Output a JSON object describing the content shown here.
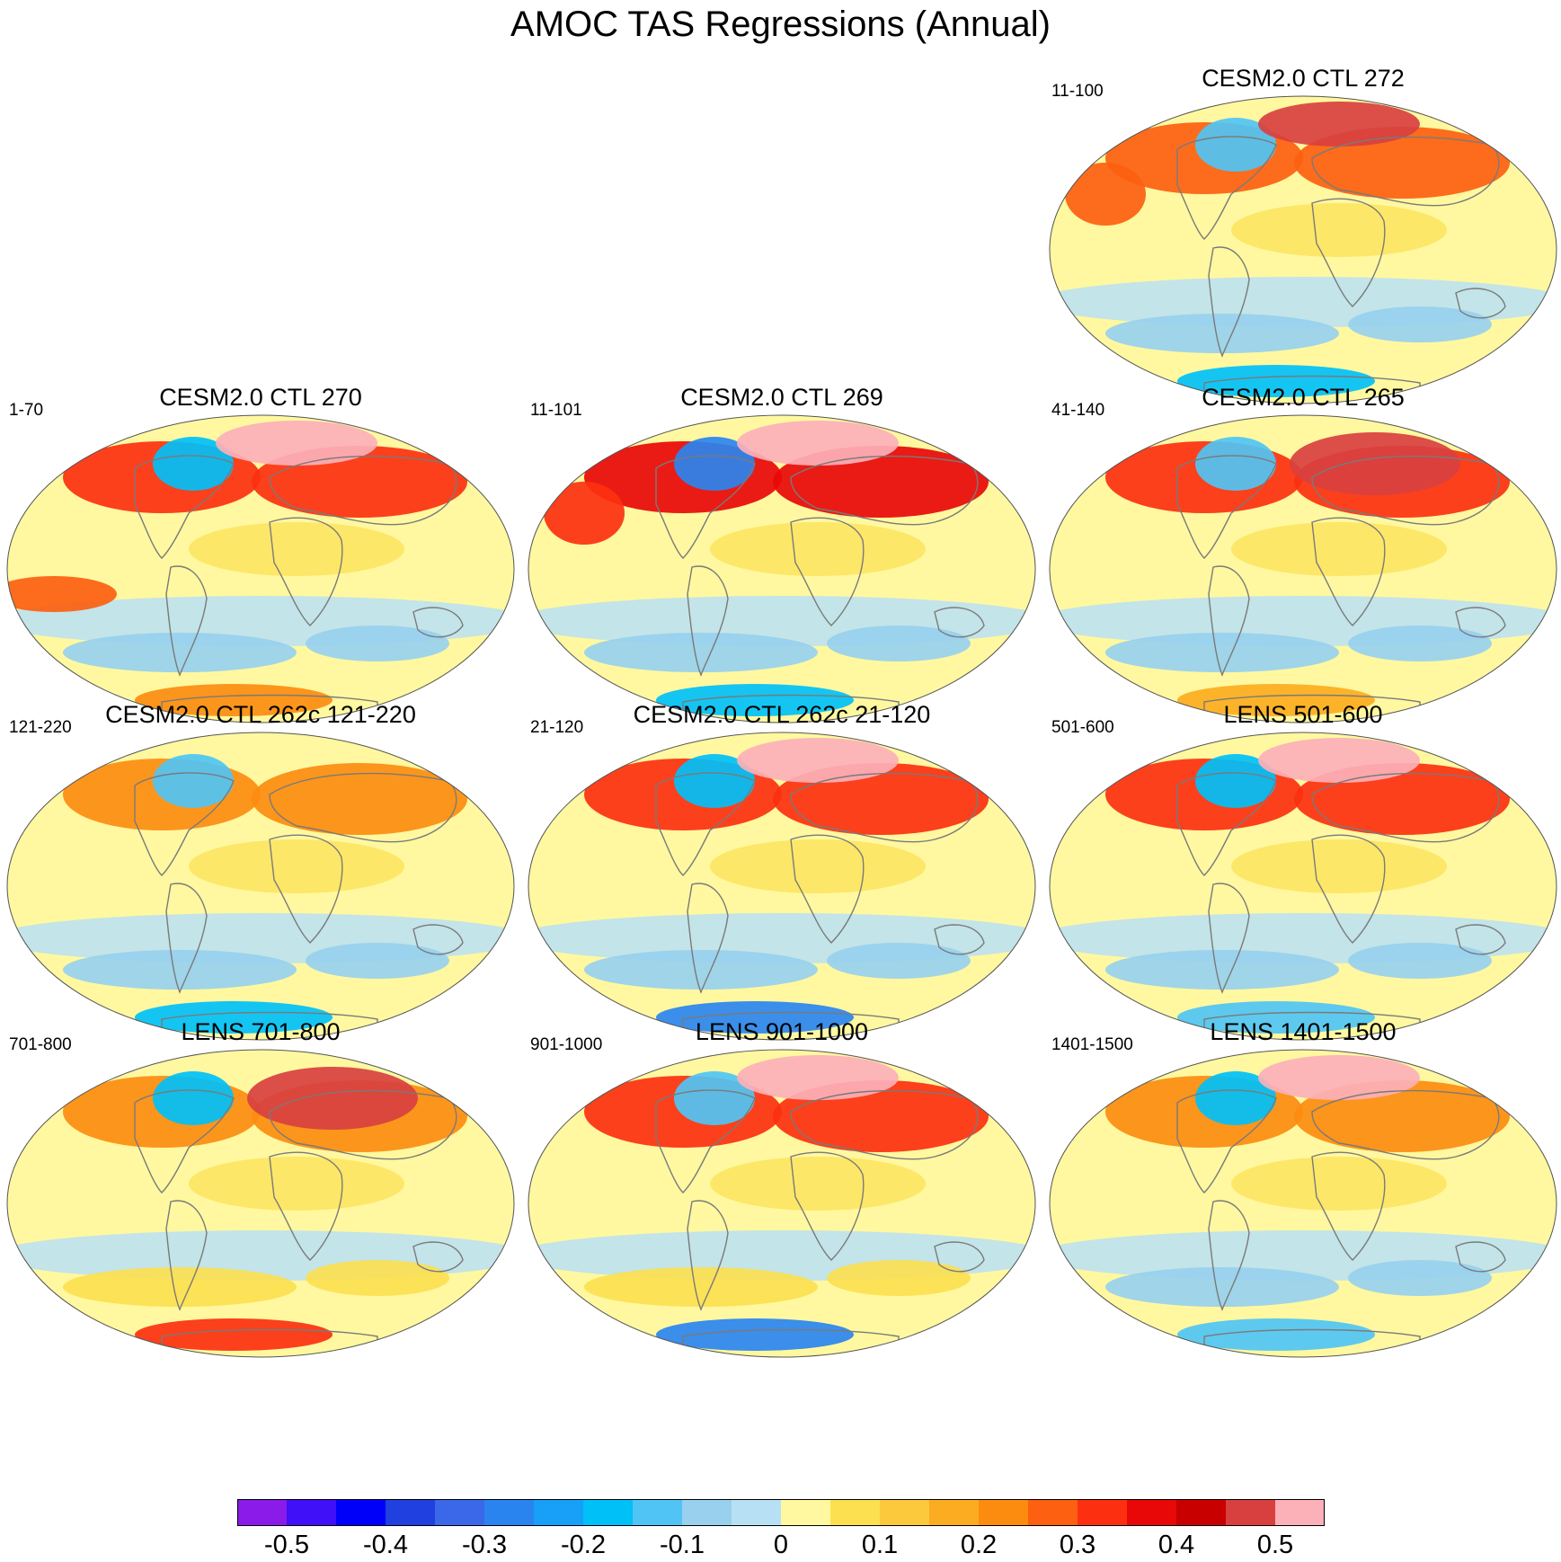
{
  "figure": {
    "title": "AMOC TAS Regressions (Annual)"
  },
  "panels": [
    {
      "id": "ctl272",
      "title": "CESM2.0 CTL 272",
      "period": "11-100"
    },
    {
      "id": "ctl270",
      "title": "CESM2.0 CTL 270",
      "period": "1-70"
    },
    {
      "id": "ctl269",
      "title": "CESM2.0 CTL 269",
      "period": "11-101"
    },
    {
      "id": "ctl265",
      "title": "CESM2.0 CTL 265",
      "period": "41-140"
    },
    {
      "id": "ctl262c_121",
      "title": "CESM2.0 CTL 262c 121-220",
      "period": "121-220"
    },
    {
      "id": "ctl262c_21",
      "title": "CESM2.0 CTL 262c 21-120",
      "period": "21-120"
    },
    {
      "id": "lens501",
      "title": "LENS 501-600",
      "period": "501-600"
    },
    {
      "id": "lens701",
      "title": "LENS 701-800",
      "period": "701-800"
    },
    {
      "id": "lens901",
      "title": "LENS 901-1000",
      "period": "901-1000"
    },
    {
      "id": "lens1401",
      "title": "LENS 1401-1500",
      "period": "1401-1500"
    }
  ],
  "colorbar": {
    "colors": [
      "#8a1be8",
      "#4010f8",
      "#0000fa",
      "#2040e0",
      "#3a68e8",
      "#2a84f0",
      "#18a0f8",
      "#00c0f8",
      "#50c4f4",
      "#98d0ee",
      "#b8e0f4",
      "#fff8a0",
      "#fce050",
      "#fcc83c",
      "#fcac20",
      "#fc8c10",
      "#fc6010",
      "#fc3010",
      "#e80808",
      "#c80000",
      "#d84040",
      "#fcb0b8"
    ],
    "labels": [
      "-0.5",
      "-0.4",
      "-0.3",
      "-0.2",
      "-0.1",
      "0",
      "0.1",
      "0.2",
      "0.3",
      "0.4",
      "0.5"
    ]
  },
  "chart_data": [
    {
      "type": "heatmap",
      "title": "CESM2.0 CTL 272",
      "period": "11-100",
      "xlabel": "",
      "ylabel": "",
      "projection": "global map",
      "features": [
        {
          "region": "Northern Hemisphere mid-high latitudes",
          "value": 0.25
        },
        {
          "region": "Greenland / Labrador Sea",
          "value": -0.15
        },
        {
          "region": "Arctic",
          "value": 0.45
        },
        {
          "region": "Southern Ocean",
          "value": -0.1
        },
        {
          "region": "Antarctica",
          "value": -0.2
        },
        {
          "region": "North Pacific",
          "value": 0.25
        }
      ]
    },
    {
      "type": "heatmap",
      "title": "CESM2.0 CTL 270",
      "period": "1-70",
      "xlabel": "",
      "ylabel": "",
      "projection": "global map",
      "features": [
        {
          "region": "Northern Hemisphere mid-high latitudes",
          "value": 0.3
        },
        {
          "region": "Greenland / Labrador Sea",
          "value": -0.2
        },
        {
          "region": "Arctic",
          "value": 0.55
        },
        {
          "region": "Southern Ocean",
          "value": -0.1
        },
        {
          "region": "Antarctica",
          "value": 0.2
        },
        {
          "region": "Tropical Pacific",
          "value": 0.25
        }
      ]
    },
    {
      "type": "heatmap",
      "title": "CESM2.0 CTL 269",
      "period": "11-101",
      "xlabel": "",
      "ylabel": "",
      "projection": "global map",
      "features": [
        {
          "region": "Northern Hemisphere mid-high latitudes",
          "value": 0.35
        },
        {
          "region": "Greenland / Labrador Sea",
          "value": -0.3
        },
        {
          "region": "Arctic",
          "value": 0.55
        },
        {
          "region": "Southern Ocean",
          "value": -0.1
        },
        {
          "region": "Antarctica",
          "value": -0.2
        },
        {
          "region": "North Pacific",
          "value": 0.3
        }
      ]
    },
    {
      "type": "heatmap",
      "title": "CESM2.0 CTL 265",
      "period": "41-140",
      "xlabel": "",
      "ylabel": "",
      "projection": "global map",
      "features": [
        {
          "region": "Northern Hemisphere mid-high latitudes",
          "value": 0.3
        },
        {
          "region": "Greenland / Labrador Sea",
          "value": -0.15
        },
        {
          "region": "Eurasia",
          "value": 0.45
        },
        {
          "region": "Southern Ocean",
          "value": -0.1
        },
        {
          "region": "Antarctica",
          "value": 0.15
        }
      ]
    },
    {
      "type": "heatmap",
      "title": "CESM2.0 CTL 262c 121-220",
      "period": "121-220",
      "xlabel": "",
      "ylabel": "",
      "projection": "global map",
      "features": [
        {
          "region": "Northern Hemisphere mid-high latitudes",
          "value": 0.2
        },
        {
          "region": "Greenland / Labrador Sea",
          "value": -0.15
        },
        {
          "region": "Southern Ocean",
          "value": -0.1
        },
        {
          "region": "Antarctica",
          "value": -0.2
        }
      ]
    },
    {
      "type": "heatmap",
      "title": "CESM2.0 CTL 262c 21-120",
      "period": "21-120",
      "xlabel": "",
      "ylabel": "",
      "projection": "global map",
      "features": [
        {
          "region": "Northern Hemisphere mid-high latitudes",
          "value": 0.3
        },
        {
          "region": "Greenland / Labrador Sea",
          "value": -0.2
        },
        {
          "region": "Arctic",
          "value": 0.55
        },
        {
          "region": "Southern Ocean",
          "value": -0.1
        },
        {
          "region": "Antarctica",
          "value": -0.3
        }
      ]
    },
    {
      "type": "heatmap",
      "title": "LENS 501-600",
      "period": "501-600",
      "xlabel": "",
      "ylabel": "",
      "projection": "global map",
      "features": [
        {
          "region": "Northern Hemisphere mid-high latitudes",
          "value": 0.3
        },
        {
          "region": "Greenland / Labrador Sea",
          "value": -0.2
        },
        {
          "region": "Arctic",
          "value": 0.55
        },
        {
          "region": "Southern Ocean",
          "value": -0.1
        },
        {
          "region": "Antarctica",
          "value": -0.15
        }
      ]
    },
    {
      "type": "heatmap",
      "title": "LENS 701-800",
      "period": "701-800",
      "xlabel": "",
      "ylabel": "",
      "projection": "global map",
      "features": [
        {
          "region": "Northern Hemisphere mid-high latitudes",
          "value": 0.2
        },
        {
          "region": "Greenland / Labrador Sea",
          "value": -0.2
        },
        {
          "region": "Eurasia",
          "value": 0.45
        },
        {
          "region": "Southern Ocean",
          "value": 0.05
        },
        {
          "region": "Antarctica",
          "value": 0.3
        }
      ]
    },
    {
      "type": "heatmap",
      "title": "LENS 901-1000",
      "period": "901-1000",
      "xlabel": "",
      "ylabel": "",
      "projection": "global map",
      "features": [
        {
          "region": "Northern Hemisphere mid-high latitudes",
          "value": 0.3
        },
        {
          "region": "Greenland / Labrador Sea",
          "value": -0.15
        },
        {
          "region": "Arctic",
          "value": 0.55
        },
        {
          "region": "Southern Ocean",
          "value": 0.05
        },
        {
          "region": "Antarctica",
          "value": -0.3
        }
      ]
    },
    {
      "type": "heatmap",
      "title": "LENS 1401-1500",
      "period": "1401-1500",
      "xlabel": "",
      "ylabel": "",
      "projection": "global map",
      "features": [
        {
          "region": "Northern Hemisphere mid-high latitudes",
          "value": 0.2
        },
        {
          "region": "Greenland / Labrador Sea",
          "value": -0.2
        },
        {
          "region": "Arctic",
          "value": 0.55
        },
        {
          "region": "Southern Ocean",
          "value": -0.1
        },
        {
          "region": "Antarctica",
          "value": -0.15
        }
      ]
    }
  ]
}
